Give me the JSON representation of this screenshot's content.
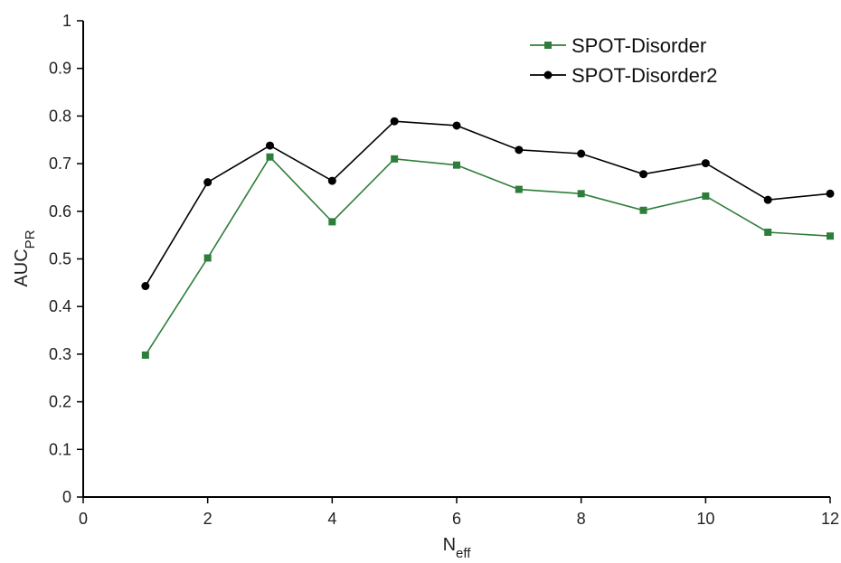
{
  "chart_data": {
    "type": "line",
    "xlabel": {
      "main": "N",
      "sub": "eff"
    },
    "ylabel": {
      "main": "AUC",
      "sub": "PR"
    },
    "xlim": [
      0,
      12
    ],
    "ylim": [
      0,
      1
    ],
    "x_ticks": [
      0,
      2,
      4,
      6,
      8,
      10,
      12
    ],
    "y_ticks": [
      0,
      0.1,
      0.2,
      0.3,
      0.4,
      0.5,
      0.6,
      0.7,
      0.8,
      0.9,
      1
    ],
    "x_tick_labels": [
      "0",
      "2",
      "4",
      "6",
      "8",
      "10",
      "12"
    ],
    "y_tick_labels": [
      "0",
      "0.1",
      "0.2",
      "0.3",
      "0.4",
      "0.5",
      "0.6",
      "0.7",
      "0.8",
      "0.9",
      "1"
    ],
    "x": [
      1,
      2,
      3,
      4,
      5,
      6,
      7,
      8,
      9,
      10,
      11,
      12
    ],
    "series": [
      {
        "name": "SPOT-Disorder",
        "color": "#2e7d3a",
        "marker": "square",
        "values": [
          0.298,
          0.502,
          0.714,
          0.578,
          0.71,
          0.697,
          0.646,
          0.637,
          0.602,
          0.632,
          0.556,
          0.548
        ]
      },
      {
        "name": "SPOT-Disorder2",
        "color": "#000000",
        "marker": "circle",
        "values": [
          0.443,
          0.661,
          0.738,
          0.664,
          0.789,
          0.78,
          0.729,
          0.721,
          0.678,
          0.701,
          0.624,
          0.637
        ]
      }
    ],
    "grid": false,
    "legend_position": "top-right"
  }
}
